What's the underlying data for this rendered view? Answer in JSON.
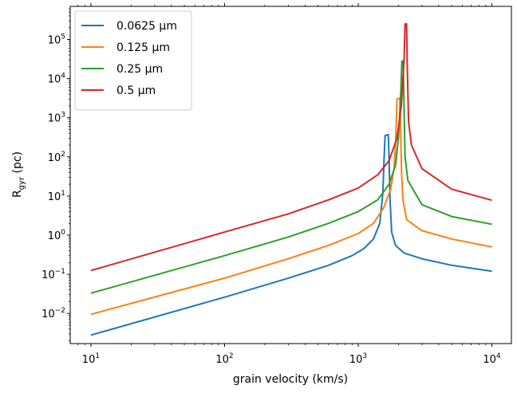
{
  "chart_data": {
    "type": "line",
    "title": "",
    "xlabel": "grain velocity (km/s)",
    "ylabel_main": "R",
    "ylabel_sub": "gyr",
    "ylabel_suffix": " (pc)",
    "xscale": "log",
    "yscale": "log",
    "xlim": [
      7.0,
      14000
    ],
    "ylim": [
      0.0017,
      700000
    ],
    "grid": false,
    "legend_position": "upper-left",
    "x_ticks": [
      {
        "value": 10,
        "base": "10",
        "exp": "1"
      },
      {
        "value": 100,
        "base": "10",
        "exp": "2"
      },
      {
        "value": 1000,
        "base": "10",
        "exp": "3"
      },
      {
        "value": 10000,
        "base": "10",
        "exp": "4"
      }
    ],
    "y_ticks": [
      {
        "value": 0.01,
        "base": "10",
        "exp": "−2"
      },
      {
        "value": 0.1,
        "base": "10",
        "exp": "−1"
      },
      {
        "value": 1,
        "base": "10",
        "exp": "0"
      },
      {
        "value": 10,
        "base": "10",
        "exp": "1"
      },
      {
        "value": 100,
        "base": "10",
        "exp": "2"
      },
      {
        "value": 1000,
        "base": "10",
        "exp": "3"
      },
      {
        "value": 10000,
        "base": "10",
        "exp": "4"
      },
      {
        "value": 100000,
        "base": "10",
        "exp": "5"
      }
    ],
    "series": [
      {
        "name": "0.0625 μm",
        "color": "#1f77b4",
        "points": [
          [
            10,
            0.0028
          ],
          [
            100,
            0.026
          ],
          [
            300,
            0.08
          ],
          [
            600,
            0.17
          ],
          [
            900,
            0.3
          ],
          [
            1100,
            0.45
          ],
          [
            1300,
            0.8
          ],
          [
            1450,
            2
          ],
          [
            1530,
            12
          ],
          [
            1560,
            80
          ],
          [
            1590,
            350
          ],
          [
            1680,
            370
          ],
          [
            1700,
            100
          ],
          [
            1730,
            8
          ],
          [
            1780,
            1.2
          ],
          [
            1900,
            0.55
          ],
          [
            2200,
            0.35
          ],
          [
            3000,
            0.25
          ],
          [
            5000,
            0.17
          ],
          [
            10000,
            0.12
          ]
        ]
      },
      {
        "name": "0.125 μm",
        "color": "#ff7f0e",
        "points": [
          [
            10,
            0.0095
          ],
          [
            100,
            0.08
          ],
          [
            300,
            0.25
          ],
          [
            600,
            0.55
          ],
          [
            1000,
            1.1
          ],
          [
            1300,
            2
          ],
          [
            1550,
            5
          ],
          [
            1750,
            15
          ],
          [
            1850,
            50
          ],
          [
            1900,
            200
          ],
          [
            1950,
            3000
          ],
          [
            2050,
            3200
          ],
          [
            2080,
            400
          ],
          [
            2110,
            40
          ],
          [
            2160,
            8
          ],
          [
            2300,
            2.5
          ],
          [
            3000,
            1.3
          ],
          [
            5000,
            0.8
          ],
          [
            10000,
            0.5
          ]
        ]
      },
      {
        "name": "0.25 μm",
        "color": "#2ca02c",
        "points": [
          [
            10,
            0.033
          ],
          [
            100,
            0.3
          ],
          [
            300,
            0.9
          ],
          [
            600,
            2
          ],
          [
            1000,
            4
          ],
          [
            1400,
            8
          ],
          [
            1700,
            20
          ],
          [
            1900,
            60
          ],
          [
            2000,
            300
          ],
          [
            2080,
            4000
          ],
          [
            2120,
            28000
          ],
          [
            2170,
            28000
          ],
          [
            2200,
            2000
          ],
          [
            2240,
            100
          ],
          [
            2350,
            25
          ],
          [
            3000,
            6
          ],
          [
            5000,
            3
          ],
          [
            10000,
            1.9
          ]
        ]
      },
      {
        "name": "0.5 μm",
        "color": "#d62728",
        "points": [
          [
            10,
            0.125
          ],
          [
            100,
            1.2
          ],
          [
            300,
            3.5
          ],
          [
            600,
            8
          ],
          [
            1000,
            16
          ],
          [
            1400,
            35
          ],
          [
            1700,
            80
          ],
          [
            1950,
            300
          ],
          [
            2100,
            2000
          ],
          [
            2200,
            30000
          ],
          [
            2240,
            250000
          ],
          [
            2300,
            250000
          ],
          [
            2330,
            20000
          ],
          [
            2380,
            800
          ],
          [
            2500,
            200
          ],
          [
            3000,
            50
          ],
          [
            5000,
            15
          ],
          [
            10000,
            7.8
          ]
        ]
      }
    ]
  }
}
